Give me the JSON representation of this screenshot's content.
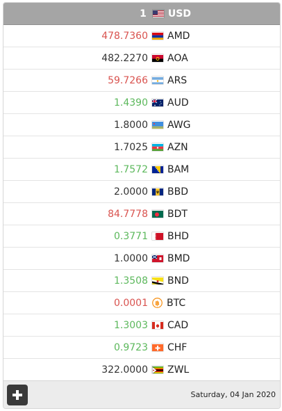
{
  "header": {
    "base_amount": "1",
    "base_currency": "USD",
    "base_flag_icon": "flag-usa-icon"
  },
  "rows": [
    {
      "value": "478.7360",
      "code": "AMD",
      "trend": "down",
      "flag_icon": "flag-armenia-icon"
    },
    {
      "value": "482.2270",
      "code": "AOA",
      "trend": "flat",
      "flag_icon": "flag-angola-icon"
    },
    {
      "value": "59.7266",
      "code": "ARS",
      "trend": "down",
      "flag_icon": "flag-argentina-icon"
    },
    {
      "value": "1.4390",
      "code": "AUD",
      "trend": "up",
      "flag_icon": "flag-australia-icon"
    },
    {
      "value": "1.8000",
      "code": "AWG",
      "trend": "flat",
      "flag_icon": "flag-aruba-icon"
    },
    {
      "value": "1.7025",
      "code": "AZN",
      "trend": "flat",
      "flag_icon": "flag-azerbaijan-icon"
    },
    {
      "value": "1.7572",
      "code": "BAM",
      "trend": "up",
      "flag_icon": "flag-bosnia-icon"
    },
    {
      "value": "2.0000",
      "code": "BBD",
      "trend": "flat",
      "flag_icon": "flag-barbados-icon"
    },
    {
      "value": "84.7778",
      "code": "BDT",
      "trend": "down",
      "flag_icon": "flag-bangladesh-icon"
    },
    {
      "value": "0.3771",
      "code": "BHD",
      "trend": "up",
      "flag_icon": "flag-bahrain-icon"
    },
    {
      "value": "1.0000",
      "code": "BMD",
      "trend": "flat",
      "flag_icon": "flag-bermuda-icon"
    },
    {
      "value": "1.3508",
      "code": "BND",
      "trend": "up",
      "flag_icon": "flag-brunei-icon"
    },
    {
      "value": "0.0001",
      "code": "BTC",
      "trend": "down",
      "flag_icon": "bitcoin-icon"
    },
    {
      "value": "1.3003",
      "code": "CAD",
      "trend": "up",
      "flag_icon": "flag-canada-icon"
    },
    {
      "value": "0.9723",
      "code": "CHF",
      "trend": "up",
      "flag_icon": "flag-switzerland-icon"
    },
    {
      "value": "322.0000",
      "code": "ZWL",
      "trend": "flat",
      "flag_icon": "flag-zimbabwe-icon"
    }
  ],
  "footer": {
    "add_icon": "plus-icon",
    "date": "Saturday, 04 Jan 2020"
  },
  "colors": {
    "up": "#5cb85c",
    "down": "#d9534f",
    "flat": "#333333",
    "header_bg": "#a5a5a5",
    "footer_bg": "#ececec"
  }
}
